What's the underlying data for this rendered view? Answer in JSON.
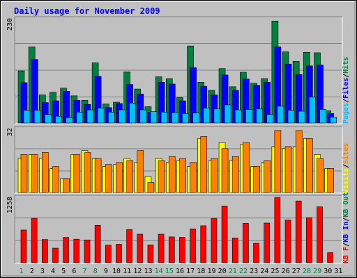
{
  "chart_data": [
    {
      "type": "bar",
      "title": "Daily usage for November 2009",
      "ymax_label": "230",
      "side_label": [
        "Pages",
        "Files",
        "Hits"
      ],
      "side_colors": [
        "#00c0ff",
        "#0000ff",
        "#008040"
      ],
      "categories": [
        "1",
        "2",
        "3",
        "4",
        "5",
        "6",
        "7",
        "8",
        "9",
        "10",
        "11",
        "12",
        "13",
        "14",
        "15",
        "16",
        "17",
        "18",
        "19",
        "20",
        "21",
        "22",
        "23",
        "24",
        "25",
        "26",
        "27",
        "28",
        "29",
        "30",
        "31"
      ],
      "weekend_days": [
        "1",
        "7",
        "8",
        "14",
        "15",
        "21",
        "22",
        "28",
        "29"
      ],
      "ylim": [
        0,
        230
      ],
      "series": [
        {
          "name": "Hits",
          "color": "#008040",
          "values": [
            115,
            168,
            62,
            68,
            77,
            60,
            50,
            133,
            42,
            46,
            113,
            75,
            36,
            102,
            98,
            56,
            170,
            90,
            72,
            120,
            80,
            112,
            88,
            98,
            225,
            157,
            136,
            156,
            155,
            27,
            0
          ]
        },
        {
          "name": "Files",
          "color": "#0000ff",
          "values": [
            89,
            140,
            45,
            49,
            70,
            50,
            41,
            103,
            34,
            43,
            85,
            64,
            24,
            90,
            86,
            49,
            122,
            81,
            62,
            106,
            72,
            97,
            83,
            90,
            168,
            130,
            107,
            126,
            128,
            21,
            0
          ]
        },
        {
          "name": "Pages",
          "color": "#00c0ff",
          "values": [
            28,
            28,
            19,
            15,
            12,
            24,
            29,
            33,
            24,
            29,
            44,
            29,
            25,
            24,
            23,
            21,
            22,
            33,
            31,
            40,
            29,
            30,
            31,
            19,
            37,
            28,
            26,
            57,
            30,
            13,
            0
          ]
        }
      ]
    },
    {
      "type": "bar",
      "ymax_label": "32",
      "side_label": [
        "Visits",
        "Sites"
      ],
      "side_colors": [
        "#ffff00",
        "#ff8000"
      ],
      "categories": [
        "1",
        "2",
        "3",
        "4",
        "5",
        "6",
        "7",
        "8",
        "9",
        "10",
        "11",
        "12",
        "13",
        "14",
        "15",
        "16",
        "17",
        "18",
        "19",
        "20",
        "21",
        "22",
        "23",
        "24",
        "25",
        "26",
        "27",
        "28",
        "29",
        "30",
        "31"
      ],
      "ylim": [
        0,
        32
      ],
      "series": [
        {
          "name": "Visits",
          "color": "#ffff00",
          "values": [
            17,
            19,
            17,
            12,
            7,
            19,
            21,
            17,
            13,
            14,
            17,
            15,
            8,
            17,
            15,
            16,
            13,
            27,
            16,
            25,
            16,
            24,
            13,
            15,
            23,
            22,
            23,
            27,
            19,
            12,
            0
          ]
        },
        {
          "name": "Sites",
          "color": "#ff8000",
          "values": [
            19,
            19,
            20,
            13,
            7,
            19,
            20,
            17,
            14,
            15,
            16,
            21,
            5,
            16,
            18,
            17,
            15,
            28,
            17,
            22,
            18,
            25,
            13,
            16,
            31,
            23,
            31,
            27,
            17,
            12,
            0
          ]
        }
      ]
    },
    {
      "type": "bar",
      "ymax_label": "1258",
      "side_label": [
        "KB F",
        "KB In",
        "KB Out"
      ],
      "side_colors": [
        "#ff0000",
        "#0000ff",
        "#008040"
      ],
      "categories": [
        "1",
        "2",
        "3",
        "4",
        "5",
        "6",
        "7",
        "8",
        "9",
        "10",
        "11",
        "12",
        "13",
        "14",
        "15",
        "16",
        "17",
        "18",
        "19",
        "20",
        "21",
        "22",
        "23",
        "24",
        "25",
        "26",
        "27",
        "28",
        "29",
        "30",
        "31"
      ],
      "ylim": [
        0,
        1258
      ],
      "series": [
        {
          "name": "KB F",
          "color": "#ff0000",
          "values": [
            630,
            856,
            447,
            281,
            487,
            453,
            439,
            719,
            340,
            355,
            638,
            549,
            343,
            549,
            497,
            489,
            652,
            711,
            850,
            1092,
            477,
            757,
            374,
            763,
            1258,
            823,
            1189,
            868,
            1076,
            194,
            0
          ]
        }
      ]
    }
  ]
}
